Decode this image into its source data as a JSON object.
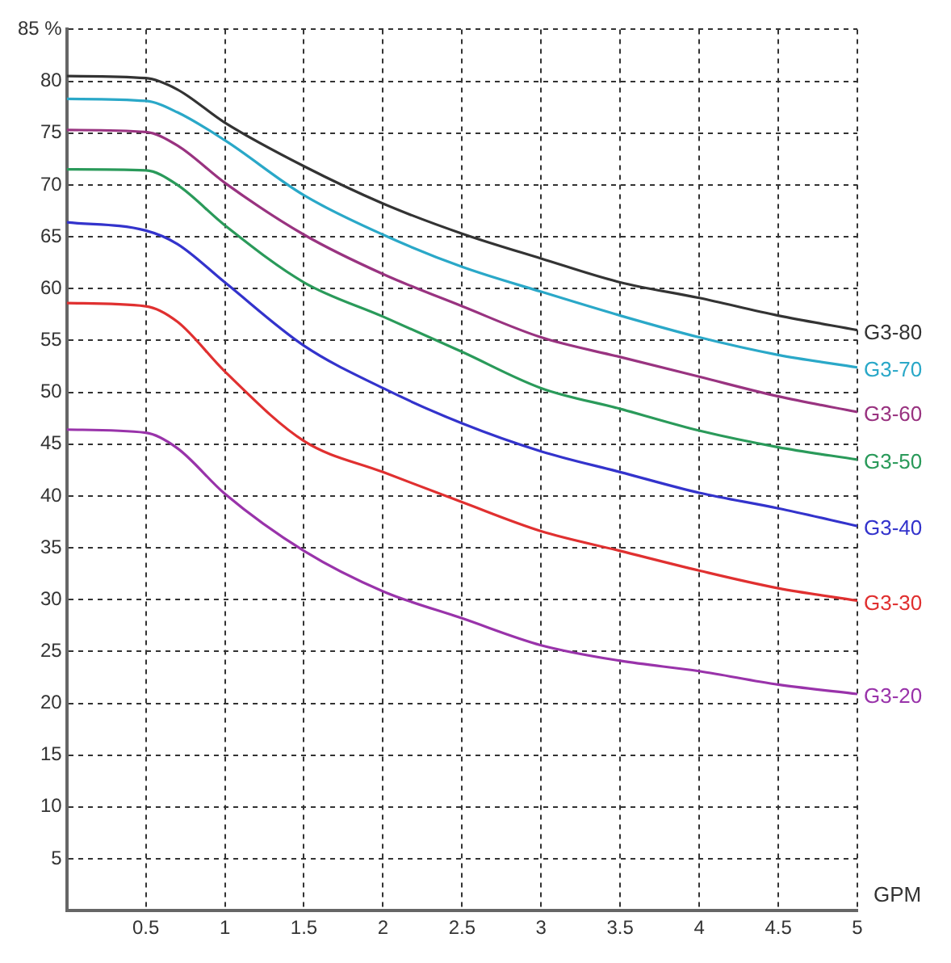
{
  "chart_data": {
    "type": "line",
    "xlabel": "GPM",
    "x": [
      0,
      0.5,
      0.7,
      1,
      1.5,
      2,
      2.5,
      3,
      3.5,
      4,
      4.5,
      5
    ],
    "series": [
      {
        "name": "G3-80",
        "color": "#333333",
        "values": [
          80.5,
          80.3,
          79.2,
          76.0,
          71.8,
          68.2,
          65.3,
          62.9,
          60.6,
          59.1,
          57.4,
          56.0
        ]
      },
      {
        "name": "G3-70",
        "color": "#2aa8c8",
        "values": [
          78.3,
          78.1,
          77.0,
          74.3,
          69.0,
          65.2,
          62.1,
          59.7,
          57.4,
          55.3,
          53.6,
          52.4
        ]
      },
      {
        "name": "G3-60",
        "color": "#993380",
        "values": [
          75.3,
          75.1,
          73.8,
          70.2,
          65.2,
          61.4,
          58.3,
          55.3,
          53.4,
          51.5,
          49.6,
          48.1
        ]
      },
      {
        "name": "G3-50",
        "color": "#2a9a5a",
        "values": [
          71.5,
          71.4,
          70.0,
          66.1,
          60.6,
          57.3,
          53.9,
          50.4,
          48.4,
          46.3,
          44.7,
          43.5
        ]
      },
      {
        "name": "G3-40",
        "color": "#3333cc",
        "values": [
          66.4,
          65.6,
          64.3,
          60.6,
          54.5,
          50.4,
          47.0,
          44.3,
          42.3,
          40.3,
          38.8,
          37.1
        ]
      },
      {
        "name": "G3-30",
        "color": "#e03030",
        "values": [
          58.6,
          58.3,
          56.8,
          52.0,
          45.3,
          42.3,
          39.4,
          36.6,
          34.7,
          32.8,
          31.1,
          29.9
        ]
      },
      {
        "name": "G3-20",
        "color": "#9933aa",
        "values": [
          46.4,
          46.1,
          44.6,
          40.2,
          34.7,
          30.8,
          28.2,
          25.6,
          24.1,
          23.1,
          21.8,
          20.9
        ]
      }
    ],
    "xlim": [
      0,
      5
    ],
    "xticks": [
      {
        "value": 0,
        "label": null
      },
      0.5,
      1,
      1.5,
      2,
      2.5,
      3,
      3.5,
      4,
      4.5,
      5
    ],
    "ylim": [
      0,
      85
    ],
    "yticks": [
      {
        "value": 0,
        "label": null
      },
      5,
      10,
      15,
      20,
      25,
      30,
      35,
      40,
      45,
      50,
      55,
      60,
      65,
      70,
      75,
      80,
      {
        "value": 85,
        "label": "85 %"
      }
    ],
    "grid": true,
    "legend": false,
    "marker": "none",
    "line_style": "solid"
  }
}
